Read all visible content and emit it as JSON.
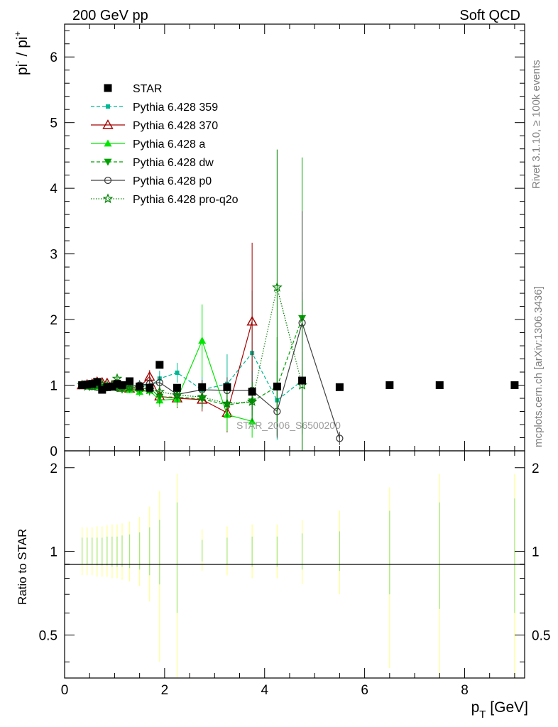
{
  "header": {
    "left": "200 GeV pp",
    "right": "Soft QCD"
  },
  "side_labels": {
    "rivet": "Rivet 3.1.10, ≥ 100k events",
    "mcplots": "mcplots.cern.ch [arXiv:1306.3436]"
  },
  "watermark": "STAR_2006_S6500200",
  "chart_data": [
    {
      "type": "scatter",
      "panel": "main",
      "ylabel_base": "pi",
      "ylabel_sup1": "-",
      "ylabel_mid": " / pi",
      "ylabel_sup2": "+",
      "xlim": [
        0,
        9.2
      ],
      "ylim": [
        0,
        6.5
      ],
      "xticks": [
        0,
        2,
        4,
        6,
        8
      ],
      "yticks": [
        0,
        1,
        2,
        3,
        4,
        5,
        6
      ],
      "yticklabels": [
        "0",
        "1",
        "2",
        "3",
        "4",
        "5",
        "6"
      ],
      "legend": "top-left",
      "series": [
        {
          "name": "STAR",
          "color": "#000000",
          "marker": "square",
          "line": "none",
          "x": [
            0.35,
            0.45,
            0.55,
            0.65,
            0.75,
            0.85,
            0.95,
            1.05,
            1.15,
            1.3,
            1.5,
            1.7,
            1.9,
            2.25,
            2.75,
            3.25,
            3.75,
            4.25,
            4.75,
            5.5,
            6.5,
            7.5,
            9.0
          ],
          "y": [
            1.0,
            1.01,
            1.02,
            1.05,
            0.93,
            0.97,
            0.98,
            1.02,
            1.0,
            1.06,
            0.98,
            0.96,
            1.31,
            0.96,
            0.97,
            0.97,
            0.9,
            0.98,
            1.07,
            0.97,
            1.0,
            1.0,
            1.0
          ]
        },
        {
          "name": "Pythia 6.428 359",
          "color": "#00b894",
          "marker": "square-small",
          "line": "dashed",
          "x": [
            0.35,
            0.45,
            0.55,
            0.65,
            0.75,
            0.85,
            0.95,
            1.05,
            1.15,
            1.3,
            1.5,
            1.7,
            1.9,
            2.25,
            2.75,
            3.25,
            3.75,
            4.25,
            4.75
          ],
          "y": [
            1.0,
            0.98,
            0.99,
            0.99,
            0.98,
            0.97,
            0.99,
            0.98,
            0.96,
            0.97,
            1.01,
            0.98,
            1.1,
            1.19,
            0.93,
            1.02,
            1.49,
            0.77,
            1.07
          ],
          "yerr": [
            0.02,
            0.02,
            0.02,
            0.02,
            0.02,
            0.03,
            0.03,
            0.03,
            0.04,
            0.05,
            0.07,
            0.08,
            0.12,
            0.15,
            0.2,
            0.45,
            0.95,
            0.6,
            1.35
          ]
        },
        {
          "name": "Pythia 6.428 370",
          "color": "#a30000",
          "marker": "triangle-open",
          "line": "solid",
          "x": [
            0.35,
            0.45,
            0.55,
            0.65,
            0.75,
            0.85,
            0.95,
            1.05,
            1.15,
            1.3,
            1.5,
            1.7,
            1.9,
            2.25,
            2.75,
            3.25,
            3.75
          ],
          "y": [
            1.0,
            1.01,
            1.02,
            1.05,
            1.04,
            1.03,
            1.0,
            0.99,
            0.96,
            0.95,
            0.97,
            1.13,
            0.83,
            0.8,
            0.78,
            0.58,
            1.97
          ],
          "yerr": [
            0.02,
            0.02,
            0.02,
            0.02,
            0.02,
            0.03,
            0.03,
            0.03,
            0.04,
            0.05,
            0.07,
            0.1,
            0.12,
            0.15,
            0.18,
            0.3,
            1.2
          ]
        },
        {
          "name": "Pythia 6.428 a",
          "color": "#00e600",
          "marker": "triangle",
          "line": "solid",
          "x": [
            0.35,
            0.45,
            0.55,
            0.65,
            0.75,
            0.85,
            0.95,
            1.05,
            1.15,
            1.3,
            1.5,
            1.7,
            1.9,
            2.25,
            2.75,
            3.25,
            3.75
          ],
          "y": [
            1.0,
            0.99,
            0.99,
            0.98,
            0.97,
            0.98,
            0.97,
            0.96,
            0.95,
            0.93,
            0.9,
            0.92,
            0.77,
            0.79,
            1.68,
            0.55,
            0.45
          ],
          "yerr": [
            0.02,
            0.02,
            0.02,
            0.02,
            0.02,
            0.03,
            0.03,
            0.03,
            0.04,
            0.05,
            0.07,
            0.08,
            0.1,
            0.12,
            0.55,
            0.25,
            0.25
          ]
        },
        {
          "name": "Pythia 6.428 dw",
          "color": "#00a000",
          "marker": "triangle-down",
          "line": "dashed",
          "x": [
            0.35,
            0.45,
            0.55,
            0.65,
            0.75,
            0.85,
            0.95,
            1.05,
            1.15,
            1.3,
            1.5,
            1.7,
            1.9,
            2.25,
            2.75,
            3.25,
            3.75,
            4.25,
            4.75
          ],
          "y": [
            1.0,
            0.99,
            0.98,
            0.99,
            0.97,
            0.96,
            0.97,
            0.95,
            0.93,
            0.94,
            0.94,
            0.96,
            0.82,
            0.82,
            0.79,
            0.7,
            0.75,
            0.98,
            2.02
          ],
          "yerr": [
            0.02,
            0.02,
            0.02,
            0.02,
            0.02,
            0.03,
            0.03,
            0.03,
            0.04,
            0.05,
            0.07,
            0.08,
            0.1,
            0.12,
            0.15,
            0.2,
            0.3,
            0.75,
            2.45
          ]
        },
        {
          "name": "Pythia 6.428 p0",
          "color": "#404040",
          "marker": "circle-open",
          "line": "solid",
          "x": [
            0.35,
            0.45,
            0.55,
            0.65,
            0.75,
            0.85,
            0.95,
            1.05,
            1.15,
            1.3,
            1.5,
            1.7,
            1.9,
            2.25,
            2.75,
            3.25,
            3.75,
            4.25,
            4.75,
            5.5
          ],
          "y": [
            1.0,
            0.99,
            0.98,
            0.97,
            0.99,
            0.98,
            0.97,
            0.96,
            0.97,
            0.98,
            1.0,
            1.02,
            1.04,
            0.86,
            0.93,
            0.92,
            0.92,
            0.6,
            1.95,
            0.19
          ],
          "yerr": [
            0.02,
            0.02,
            0.02,
            0.02,
            0.02,
            0.03,
            0.03,
            0.03,
            0.04,
            0.05,
            0.07,
            0.08,
            0.1,
            0.12,
            0.15,
            0.2,
            0.3,
            0.4,
            1.7,
            0.1
          ]
        },
        {
          "name": "Pythia 6.428 pro-q2o",
          "color": "#008000",
          "marker": "star",
          "line": "dotted",
          "x": [
            0.35,
            0.45,
            0.55,
            0.65,
            0.75,
            0.85,
            0.95,
            1.05,
            1.15,
            1.3,
            1.5,
            1.7,
            1.9,
            2.25,
            2.75,
            3.25,
            3.75,
            4.25,
            4.75
          ],
          "y": [
            1.0,
            0.98,
            0.98,
            0.99,
            1.01,
            0.99,
            1.0,
            1.1,
            0.98,
            0.97,
            0.96,
            0.93,
            0.9,
            0.85,
            0.82,
            0.72,
            0.75,
            2.49,
            1.0
          ],
          "yerr": [
            0.02,
            0.02,
            0.02,
            0.02,
            0.02,
            0.03,
            0.03,
            0.03,
            0.04,
            0.05,
            0.07,
            0.08,
            0.1,
            0.12,
            0.15,
            0.2,
            0.3,
            2.1,
            1.3
          ]
        }
      ]
    },
    {
      "type": "line",
      "panel": "ratio",
      "ylabel": "Ratio to STAR",
      "xlabel": "p",
      "xlabel_sub": "T",
      "xlabel_unit": " [GeV]",
      "xlim": [
        0,
        9.2
      ],
      "ylim": [
        0.35,
        2.3
      ],
      "scale": "log",
      "xticks": [
        0,
        2,
        4,
        6,
        8
      ],
      "xticklabels": [
        "0",
        "2",
        "4",
        "6",
        "8"
      ],
      "yticks": [
        0.5,
        1,
        2
      ],
      "yticklabels": [
        "0.5",
        "1",
        "2"
      ],
      "reference": 1.0,
      "bands": {
        "x": [
          0.35,
          0.45,
          0.55,
          0.65,
          0.75,
          0.85,
          0.95,
          1.05,
          1.15,
          1.3,
          1.5,
          1.7,
          1.9,
          2.25,
          2.75,
          3.25,
          3.75,
          4.25,
          4.75,
          5.5,
          6.5,
          7.5,
          9.0
        ],
        "yellow": [
          [
            0.82,
            1.22
          ],
          [
            0.82,
            1.22
          ],
          [
            0.82,
            1.22
          ],
          [
            0.81,
            1.23
          ],
          [
            0.81,
            1.23
          ],
          [
            0.81,
            1.24
          ],
          [
            0.8,
            1.25
          ],
          [
            0.8,
            1.25
          ],
          [
            0.79,
            1.26
          ],
          [
            0.78,
            1.28
          ],
          [
            0.75,
            1.33
          ],
          [
            0.66,
            1.45
          ],
          [
            0.4,
            1.65
          ],
          [
            0.35,
            1.9
          ],
          [
            0.85,
            1.2
          ],
          [
            0.82,
            1.23
          ],
          [
            0.8,
            1.25
          ],
          [
            0.8,
            1.25
          ],
          [
            0.76,
            1.3
          ],
          [
            0.7,
            1.4
          ],
          [
            0.38,
            1.7
          ],
          [
            0.35,
            1.9
          ],
          [
            0.35,
            1.9
          ]
        ],
        "green": [
          [
            0.9,
            1.12
          ],
          [
            0.9,
            1.12
          ],
          [
            0.9,
            1.12
          ],
          [
            0.89,
            1.12
          ],
          [
            0.89,
            1.12
          ],
          [
            0.89,
            1.13
          ],
          [
            0.88,
            1.13
          ],
          [
            0.88,
            1.13
          ],
          [
            0.88,
            1.14
          ],
          [
            0.87,
            1.15
          ],
          [
            0.86,
            1.17
          ],
          [
            0.82,
            1.22
          ],
          [
            0.76,
            1.3
          ],
          [
            0.6,
            1.5
          ],
          [
            0.92,
            1.1
          ],
          [
            0.9,
            1.12
          ],
          [
            0.88,
            1.13
          ],
          [
            0.88,
            1.13
          ],
          [
            0.86,
            1.16
          ],
          [
            0.85,
            1.18
          ],
          [
            0.7,
            1.4
          ],
          [
            0.62,
            1.5
          ],
          [
            0.6,
            1.55
          ]
        ]
      }
    }
  ]
}
